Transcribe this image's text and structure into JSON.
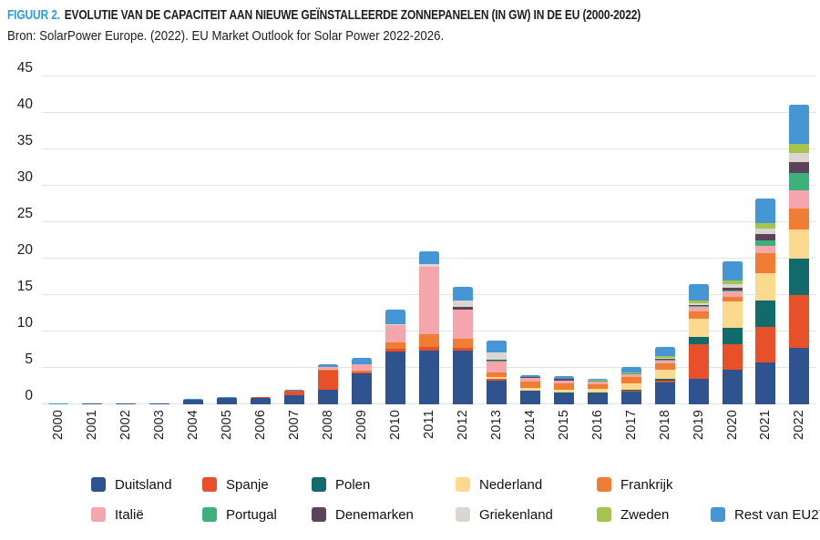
{
  "header": {
    "figure_label": "FIGUUR 2.",
    "title": "EVOLUTIE VAN DE CAPACITEIT AAN NIEUWE GEÏNSTALLEERDE ZONNEPANELEN (IN GW) IN DE EU (2000-2022)",
    "source": "Bron: SolarPower Europe. (2022). EU Market Outlook for Solar Power 2022-2026."
  },
  "colors": {
    "figure_label_blue": "#2e9fd6",
    "grid": "#e4e4e4",
    "text": "#1d1d1d"
  },
  "chart_data": {
    "type": "bar",
    "stacked": true,
    "title": "Evolutie van de capaciteit aan nieuwe geïnstalleerde zonnepanelen (in GW) in de EU (2000-2022)",
    "xlabel": "",
    "ylabel": "GW",
    "ylim": [
      0,
      45
    ],
    "yticks": [
      0,
      5,
      10,
      15,
      20,
      25,
      30,
      35,
      40,
      45
    ],
    "grid": true,
    "legend_position": "bottom",
    "categories": [
      "2000",
      "2001",
      "2002",
      "2003",
      "2004",
      "2005",
      "2006",
      "2007",
      "2008",
      "2009",
      "2010",
      "2011",
      "2012",
      "2013",
      "2014",
      "2015",
      "2016",
      "2017",
      "2018",
      "2019",
      "2020",
      "2021",
      "2022"
    ],
    "series": [
      {
        "name": "Duitsland",
        "color": "#2e538f",
        "values": [
          0.04,
          0.08,
          0.08,
          0.13,
          0.6,
          0.85,
          0.85,
          1.3,
          1.95,
          4.3,
          7.3,
          7.4,
          7.4,
          3.3,
          1.9,
          1.5,
          1.5,
          1.75,
          2.95,
          3.5,
          4.7,
          5.8,
          7.7
        ]
      },
      {
        "name": "Spanje",
        "color": "#e8502a",
        "values": [
          0,
          0,
          0,
          0,
          0.01,
          0.02,
          0.09,
          0.55,
          2.73,
          0.05,
          0.35,
          0.45,
          0.3,
          0.15,
          0.02,
          0.06,
          0.06,
          0.15,
          0.3,
          4.7,
          3.5,
          4.85,
          7.3
        ]
      },
      {
        "name": "Polen",
        "color": "#116b6b",
        "values": [
          0,
          0,
          0,
          0,
          0,
          0,
          0,
          0,
          0,
          0,
          0,
          0,
          0,
          0,
          0,
          0.02,
          0.1,
          0.1,
          0.2,
          1.0,
          2.3,
          3.6,
          5.0
        ]
      },
      {
        "name": "Nederland",
        "color": "#fbd98e",
        "values": [
          0,
          0,
          0,
          0,
          0,
          0,
          0,
          0,
          0,
          0.01,
          0.02,
          0.03,
          0.05,
          0.3,
          0.35,
          0.45,
          0.5,
          0.85,
          1.3,
          2.6,
          3.6,
          3.7,
          4.0
        ]
      },
      {
        "name": "Frankrijk",
        "color": "#ef7d33",
        "values": [
          0,
          0,
          0,
          0,
          0.01,
          0.01,
          0.01,
          0.01,
          0.1,
          0.3,
          0.8,
          1.75,
          1.2,
          0.65,
          0.9,
          0.9,
          0.6,
          0.9,
          0.85,
          0.95,
          0.7,
          2.75,
          2.9
        ]
      },
      {
        "name": "Italië",
        "color": "#f4a6ac",
        "values": [
          0,
          0,
          0,
          0,
          0.01,
          0.02,
          0.01,
          0.07,
          0.34,
          0.8,
          2.4,
          9.25,
          4.0,
          1.5,
          0.4,
          0.3,
          0.4,
          0.4,
          0.45,
          0.6,
          0.75,
          1.0,
          2.5
        ]
      },
      {
        "name": "Portugal",
        "color": "#3cb17d",
        "values": [
          0,
          0,
          0,
          0,
          0,
          0,
          0,
          0,
          0.05,
          0.03,
          0.03,
          0.03,
          0.05,
          0.05,
          0.05,
          0.06,
          0.06,
          0.05,
          0.1,
          0.2,
          0.1,
          0.8,
          2.3
        ]
      },
      {
        "name": "Denemarken",
        "color": "#5b4459",
        "values": [
          0,
          0,
          0,
          0,
          0,
          0,
          0,
          0,
          0,
          0,
          0.01,
          0.01,
          0.4,
          0.2,
          0.1,
          0.18,
          0.07,
          0.05,
          0.05,
          0.1,
          0.4,
          0.9,
          1.5
        ]
      },
      {
        "name": "Griekenland",
        "color": "#dbd6d1",
        "values": [
          0,
          0,
          0,
          0,
          0,
          0,
          0,
          0,
          0.01,
          0.04,
          0.15,
          0.35,
          0.85,
          1.0,
          0.02,
          0.01,
          0.01,
          0.05,
          0.2,
          0.2,
          0.4,
          0.75,
          1.25
        ]
      },
      {
        "name": "Zweden",
        "color": "#a5c44d",
        "values": [
          0,
          0,
          0,
          0,
          0,
          0,
          0,
          0,
          0,
          0,
          0,
          0,
          0.01,
          0.02,
          0.04,
          0.05,
          0.06,
          0.1,
          0.2,
          0.4,
          0.5,
          0.75,
          1.25
        ]
      },
      {
        "name": "Rest van EU27",
        "color": "#4596d4",
        "values": [
          0.04,
          0.04,
          0.05,
          0.05,
          0.07,
          0.1,
          0.04,
          0.07,
          0.32,
          0.82,
          1.94,
          1.73,
          1.84,
          1.53,
          0.27,
          0.32,
          0.19,
          0.7,
          1.3,
          2.25,
          2.7,
          3.3,
          5.4
        ]
      }
    ]
  }
}
